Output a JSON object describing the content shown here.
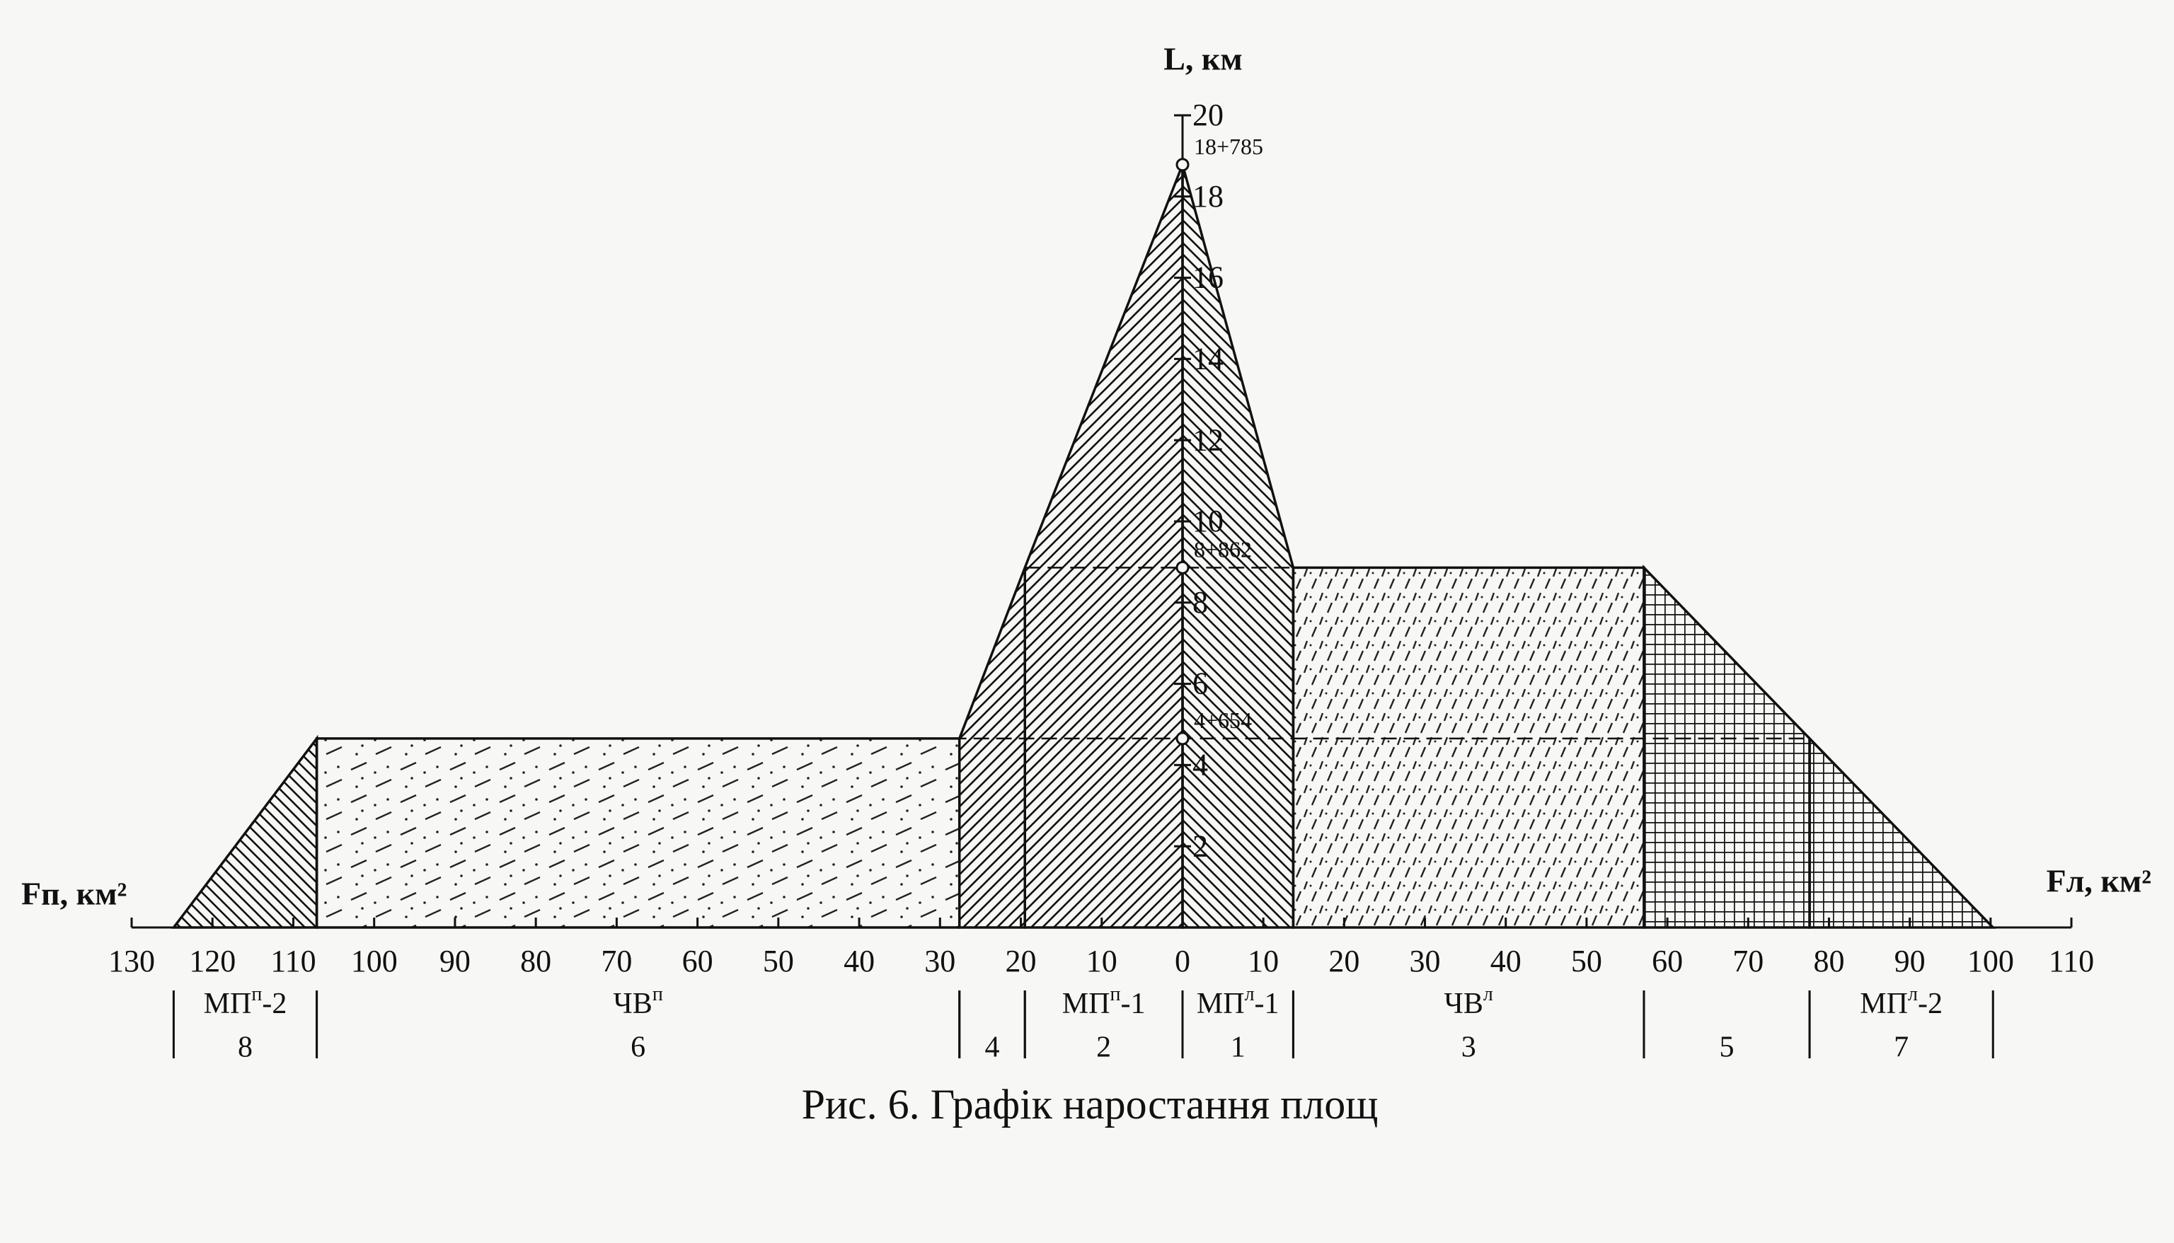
{
  "chart_data": {
    "type": "area-growth",
    "caption": "Рис. 6. Графік наростання площ",
    "y_label": "L, км",
    "x_left_label": "Fп, км²",
    "x_right_label": "Fл, км²",
    "ylim": [
      0,
      20
    ],
    "yticks": [
      2,
      4,
      6,
      8,
      10,
      12,
      14,
      16,
      18,
      20
    ],
    "xlim_left": [
      0,
      130
    ],
    "xticks_left": [
      0,
      10,
      20,
      30,
      40,
      50,
      60,
      70,
      80,
      90,
      100,
      110,
      120,
      130
    ],
    "xlim_right": [
      0,
      110
    ],
    "xticks_right": [
      10,
      20,
      30,
      40,
      50,
      60,
      70,
      80,
      90,
      100,
      110
    ],
    "annotations": [
      {
        "value": 18.785,
        "label": "18+785"
      },
      {
        "value": 8.862,
        "label": "8+862"
      },
      {
        "value": 4.654,
        "label": "4+654"
      }
    ],
    "regions": [
      {
        "side": "left",
        "pattern": "hatch-left",
        "points": [
          [
            107.1,
            0
          ],
          [
            107.1,
            4.654
          ],
          [
            124.8,
            0
          ]
        ]
      },
      {
        "side": "left",
        "pattern": "dash-dot",
        "points": [
          [
            27.6,
            0
          ],
          [
            27.6,
            4.654
          ],
          [
            107.1,
            4.654
          ],
          [
            107.1,
            0
          ]
        ]
      },
      {
        "side": "left",
        "pattern": "hatch-right",
        "points": [
          [
            19.5,
            0
          ],
          [
            19.5,
            8.862
          ],
          [
            27.6,
            4.654
          ],
          [
            27.6,
            0
          ]
        ]
      },
      {
        "side": "left",
        "pattern": "hatch-right",
        "points": [
          [
            0,
            0
          ],
          [
            0,
            18.785
          ],
          [
            19.5,
            8.862
          ],
          [
            19.5,
            0
          ]
        ]
      },
      {
        "side": "right",
        "pattern": "hatch-left",
        "points": [
          [
            0,
            0
          ],
          [
            0,
            18.785
          ],
          [
            13.7,
            8.862
          ],
          [
            13.7,
            0
          ]
        ]
      },
      {
        "side": "right",
        "pattern": "dash",
        "points": [
          [
            13.7,
            0
          ],
          [
            13.7,
            8.862
          ],
          [
            57.1,
            8.862
          ],
          [
            57.1,
            0
          ]
        ]
      },
      {
        "side": "right",
        "pattern": "grid",
        "points": [
          [
            57.1,
            0
          ],
          [
            57.1,
            8.862
          ],
          [
            77.6,
            4.654
          ],
          [
            77.6,
            0
          ]
        ]
      },
      {
        "side": "right",
        "pattern": "grid",
        "points": [
          [
            77.6,
            0
          ],
          [
            77.6,
            4.654
          ],
          [
            100.3,
            0
          ]
        ]
      }
    ],
    "sections": [
      {
        "side": "left",
        "from": 107.1,
        "to": 124.8,
        "name": {
          "base": "МП",
          "sup": "п",
          "tail": "-2"
        },
        "number": 8
      },
      {
        "side": "left",
        "from": 27.6,
        "to": 107.1,
        "name": {
          "base": "ЧВ",
          "sup": "п"
        },
        "number": 6
      },
      {
        "side": "left",
        "from": 19.5,
        "to": 27.6,
        "number": 4
      },
      {
        "side": "left",
        "from": 0,
        "to": 19.5,
        "name": {
          "base": "МП",
          "sup": "п",
          "tail": "-1"
        },
        "number": 2
      },
      {
        "side": "right",
        "from": 0,
        "to": 13.7,
        "name": {
          "base": "МП",
          "sup": "л",
          "tail": "-1"
        },
        "number": 1
      },
      {
        "side": "right",
        "from": 13.7,
        "to": 57.1,
        "name": {
          "base": "ЧВ",
          "sup": "л"
        },
        "number": 3
      },
      {
        "side": "right",
        "from": 57.1,
        "to": 77.6,
        "number": 5
      },
      {
        "side": "right",
        "from": 77.6,
        "to": 100.3,
        "name": {
          "base": "МП",
          "sup": "л",
          "tail": "-2"
        },
        "number": 7
      }
    ]
  }
}
